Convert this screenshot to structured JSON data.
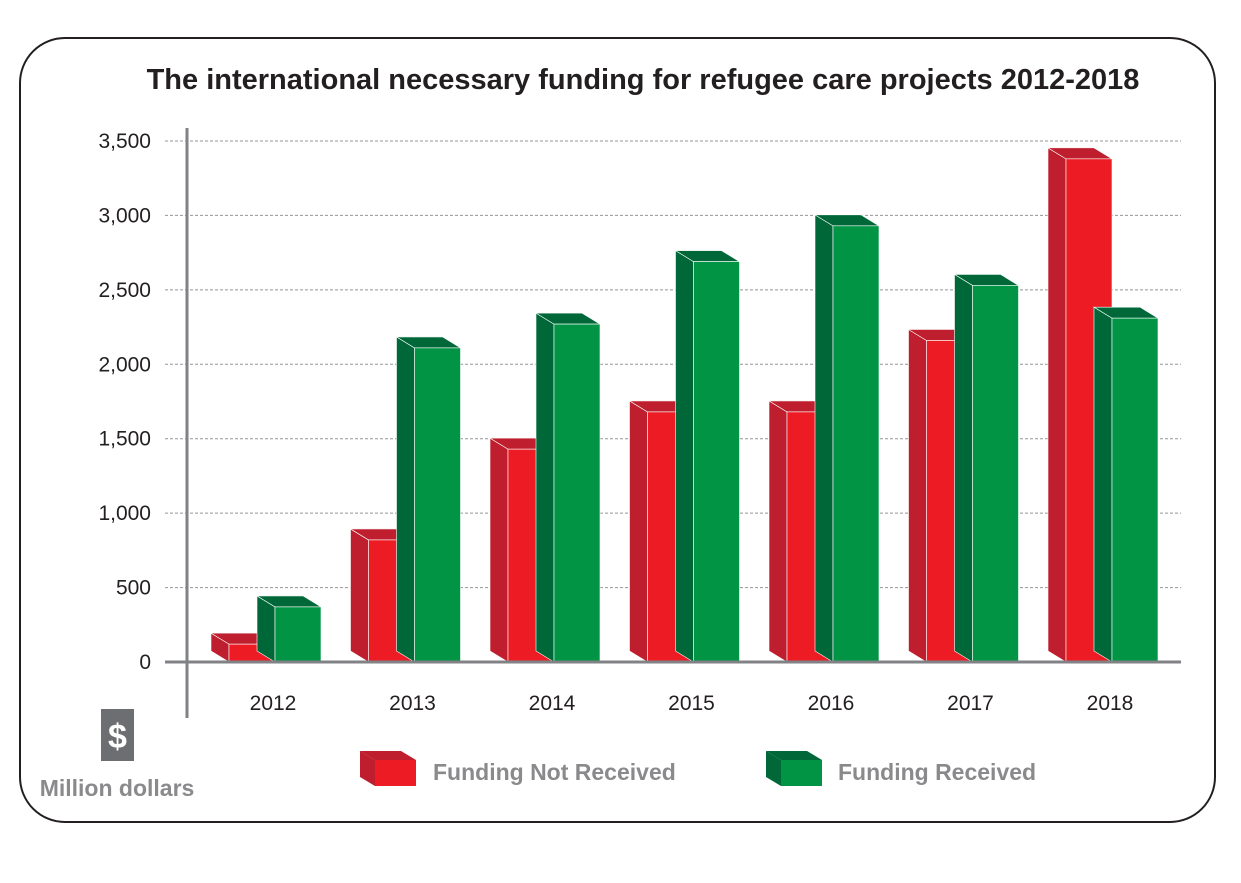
{
  "chart_data": {
    "type": "bar",
    "title": "The international necessary funding for refugee care projects 2012-2018",
    "categories": [
      "2012",
      "2013",
      "2014",
      "2015",
      "2016",
      "2017",
      "2018"
    ],
    "series": [
      {
        "name": "Funding Not Received",
        "values": [
          120,
          820,
          1430,
          1680,
          1680,
          2160,
          3380
        ],
        "color": "#ed1c24",
        "side": "#be1e2d",
        "top": "#be1e2d"
      },
      {
        "name": "Funding Received",
        "values": [
          370,
          2110,
          2270,
          2690,
          2930,
          2530,
          2310
        ],
        "color": "#009444",
        "side": "#006838",
        "top": "#006838"
      }
    ],
    "ylim": [
      0,
      3500
    ],
    "yticks": [
      0,
      500,
      1000,
      1500,
      2000,
      2500,
      3000,
      3500
    ],
    "ytick_labels": [
      "0",
      "500",
      "1,000",
      "1,500",
      "2,000",
      "2,500",
      "3,000",
      "3,500"
    ],
    "ylabel": "Million dollars",
    "unit_icon": "dollar-icon",
    "unit_symbol": "$",
    "grid": true,
    "legend_position": "bottom"
  }
}
